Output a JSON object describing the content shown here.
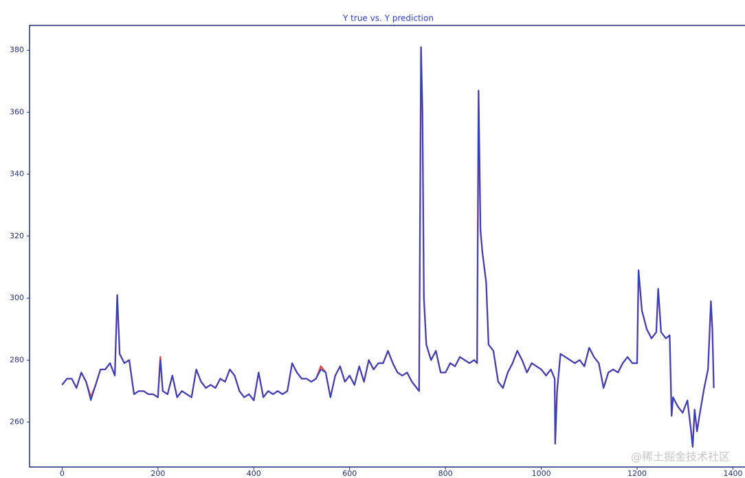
{
  "chart_data": {
    "type": "line",
    "title": "Y true vs. Y prediction",
    "x": [
      0,
      10,
      20,
      30,
      40,
      50,
      60,
      70,
      80,
      90,
      100,
      110,
      115,
      120,
      130,
      140,
      150,
      160,
      170,
      180,
      190,
      200,
      205,
      210,
      220,
      230,
      240,
      250,
      260,
      270,
      280,
      290,
      300,
      310,
      320,
      330,
      340,
      350,
      360,
      370,
      380,
      390,
      400,
      410,
      420,
      430,
      440,
      450,
      460,
      470,
      480,
      490,
      500,
      510,
      520,
      530,
      540,
      550,
      560,
      570,
      580,
      590,
      600,
      610,
      620,
      630,
      640,
      650,
      660,
      670,
      680,
      690,
      700,
      710,
      720,
      730,
      740,
      745,
      749,
      752,
      755,
      760,
      770,
      780,
      790,
      800,
      810,
      820,
      830,
      840,
      850,
      860,
      866,
      869,
      873,
      877,
      885,
      890,
      900,
      910,
      920,
      930,
      940,
      950,
      960,
      970,
      980,
      990,
      1000,
      1010,
      1020,
      1028,
      1029,
      1033,
      1040,
      1050,
      1060,
      1070,
      1080,
      1090,
      1100,
      1110,
      1120,
      1130,
      1140,
      1150,
      1160,
      1170,
      1180,
      1190,
      1200,
      1203,
      1210,
      1220,
      1230,
      1240,
      1244,
      1250,
      1260,
      1268,
      1272,
      1275,
      1285,
      1295,
      1305,
      1312,
      1316,
      1320,
      1325,
      1330,
      1340,
      1348,
      1354,
      1357,
      1360
    ],
    "series": [
      {
        "color": "#e8403a",
        "values": [
          272,
          274,
          274,
          271,
          276,
          273,
          268,
          272,
          277,
          277,
          279,
          275,
          301,
          282,
          279,
          280,
          269,
          270,
          270,
          269,
          269,
          268,
          281,
          270,
          269,
          275,
          268,
          270,
          269,
          268,
          277,
          273,
          271,
          272,
          271,
          274,
          273,
          277,
          275,
          270,
          268,
          269,
          267,
          276,
          268,
          270,
          269,
          270,
          269,
          270,
          279,
          276,
          274,
          274,
          273,
          274,
          278,
          276,
          268,
          275,
          278,
          273,
          275,
          272,
          278,
          273,
          280,
          277,
          279,
          279,
          283,
          279,
          276,
          275,
          276,
          273,
          271,
          270,
          381,
          360,
          300,
          285,
          280,
          283,
          276,
          276,
          279,
          278,
          281,
          280,
          279,
          280,
          279,
          367,
          322,
          315,
          305,
          285,
          283,
          273,
          271,
          276,
          279,
          283,
          280,
          276,
          279,
          278,
          277,
          275,
          277,
          274,
          253,
          270,
          282,
          281,
          280,
          279,
          280,
          278,
          284,
          281,
          279,
          271,
          276,
          277,
          276,
          279,
          281,
          279,
          279,
          309,
          296,
          290,
          287,
          289,
          303,
          289,
          287,
          288,
          262,
          268,
          265,
          263,
          267,
          258,
          252,
          264,
          257,
          262,
          271,
          277,
          299,
          290,
          271
        ]
      },
      {
        "color": "#1f45d1",
        "values": [
          272,
          274,
          274,
          271,
          276,
          273,
          267,
          272,
          277,
          277,
          279,
          275,
          301,
          282,
          279,
          280,
          269,
          270,
          270,
          269,
          269,
          268,
          280,
          270,
          269,
          275,
          268,
          270,
          269,
          268,
          277,
          273,
          271,
          272,
          271,
          274,
          273,
          277,
          275,
          270,
          268,
          269,
          267,
          276,
          268,
          270,
          269,
          270,
          269,
          270,
          279,
          276,
          274,
          274,
          273,
          274,
          277,
          276,
          268,
          275,
          278,
          273,
          275,
          272,
          278,
          273,
          280,
          277,
          279,
          279,
          283,
          279,
          276,
          275,
          276,
          273,
          271,
          270,
          381,
          360,
          300,
          285,
          280,
          283,
          276,
          276,
          279,
          278,
          281,
          280,
          279,
          280,
          279,
          367,
          322,
          315,
          305,
          285,
          283,
          273,
          271,
          276,
          279,
          283,
          280,
          276,
          279,
          278,
          277,
          275,
          277,
          274,
          253,
          270,
          282,
          281,
          280,
          279,
          280,
          278,
          284,
          281,
          279,
          271,
          276,
          277,
          276,
          279,
          281,
          279,
          279,
          309,
          296,
          290,
          287,
          289,
          303,
          289,
          287,
          288,
          262,
          268,
          265,
          263,
          267,
          258,
          252,
          264,
          257,
          262,
          271,
          277,
          299,
          290,
          271
        ]
      }
    ],
    "xlim": [
      -68,
      1428
    ],
    "ylim": [
      245.5,
      388
    ],
    "xticks": [
      0,
      200,
      400,
      600,
      800,
      1000,
      1200,
      1400
    ],
    "yticks": [
      260,
      280,
      300,
      320,
      340,
      360,
      380
    ]
  },
  "watermark": "@稀土掘金技术社区"
}
